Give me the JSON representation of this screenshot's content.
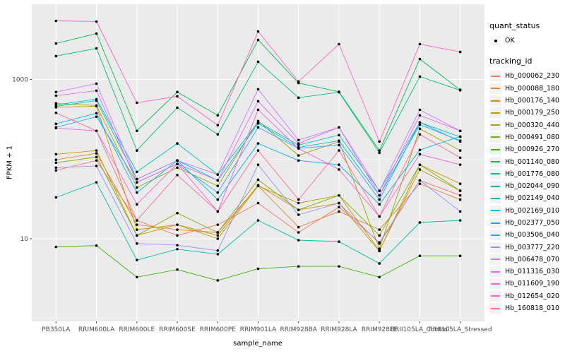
{
  "style_colors": {
    "panel_background": "#EBEBEB",
    "grid_line": "#FFFFFF",
    "tick_label": "#4D4D4D",
    "tick_mark": "#333333",
    "legend_key_background": "#F2F2F2",
    "point": "#000000"
  },
  "chart_data": {
    "type": "line",
    "title": "",
    "xlabel": "sample_name",
    "ylabel": "FPKM + 1",
    "yscale": "log10",
    "ylim": [
      0.92,
      8800
    ],
    "grid": "on",
    "legend_position": "right",
    "point_shape": "filled-circle",
    "x": [
      "PB350LA",
      "RRIM600LA",
      "RRIM600LE",
      "RRIM600SE",
      "RRIM600PE",
      "RRIM901LA",
      "RRIM928BA",
      "RRIM928LA",
      "RRIM928LE",
      "RRII105LA_Control",
      "RRII105LA_Stressed"
    ],
    "y_major_ticks": [
      {
        "label": "10",
        "value": 10
      },
      {
        "label": "1000",
        "value": 1000
      }
    ],
    "y_minor_tick_values": [
      1,
      100
    ],
    "legend": {
      "quant_status_title": "quant_status",
      "quant_status_items": [
        {
          "label": "OK"
        }
      ],
      "tracking_id_title": "tracking_id"
    },
    "series": [
      {
        "name": "Hb_000062_230",
        "color": "#F8766D",
        "values": [
          72,
          96,
          17,
          11,
          15,
          28,
          12,
          25,
          9,
          54,
          35
        ]
      },
      {
        "name": "Hb_000088_180",
        "color": "#EA8331",
        "values": [
          98,
          118,
          15,
          13,
          12,
          46,
          14,
          22,
          13,
          49,
          31
        ]
      },
      {
        "name": "Hb_000176_140",
        "color": "#D89000",
        "values": [
          447,
          461,
          13,
          15,
          11,
          47,
          23,
          28,
          7,
          85,
          49
        ]
      },
      {
        "name": "Hb_000179_250",
        "color": "#C09B00",
        "values": [
          115,
          128,
          11,
          15,
          10,
          46,
          28,
          35,
          7.1,
          74,
          40
        ]
      },
      {
        "name": "Hb_000320_440",
        "color": "#A3A500",
        "values": [
          500,
          470,
          44,
          78,
          46,
          300,
          111,
          166,
          7.5,
          240,
          128
        ]
      },
      {
        "name": "Hb_000491_080",
        "color": "#7CAE00",
        "values": [
          90,
          106,
          11,
          21,
          12,
          55,
          23,
          35,
          11,
          85,
          40
        ]
      },
      {
        "name": "Hb_000926_270",
        "color": "#39B600",
        "values": [
          7.9,
          8.2,
          3.3,
          4.1,
          3.0,
          4.2,
          4.5,
          4.5,
          3.3,
          6.1,
          6.1
        ]
      },
      {
        "name": "Hb_001140_080",
        "color": "#00BB4E",
        "values": [
          2825,
          3760,
          226,
          694,
          354,
          3130,
          900,
          700,
          128,
          1800,
          740
        ]
      },
      {
        "name": "Hb_001776_080",
        "color": "#00BF7D",
        "values": [
          1960,
          2450,
          128,
          442,
          204,
          1666,
          589,
          690,
          120,
          1085,
          730
        ]
      },
      {
        "name": "Hb_002044_090",
        "color": "#00C1A3",
        "values": [
          33,
          51,
          5.4,
          7.4,
          6.4,
          17,
          9.6,
          9.2,
          4.9,
          16,
          17
        ]
      },
      {
        "name": "Hb_002149_040",
        "color": "#00BFC4",
        "values": [
          480,
          565,
          69,
          157,
          64,
          290,
          150,
          200,
          40,
          288,
          190
        ]
      },
      {
        "name": "Hb_002169_010",
        "color": "#00BAE0",
        "values": [
          460,
          540,
          56,
          96,
          54,
          280,
          140,
          170,
          35,
          270,
          170
        ]
      },
      {
        "name": "Hb_002377_050",
        "color": "#00B0F6",
        "values": [
          277,
          376,
          38,
          96,
          31,
          157,
          96,
          85,
          27,
          130,
          192
        ]
      },
      {
        "name": "Hb_003506_040",
        "color": "#35A2FF",
        "values": [
          250,
          340,
          51,
          87,
          38,
          250,
          136,
          150,
          31,
          288,
          166
        ]
      },
      {
        "name": "Hb_003777_220",
        "color": "#9590FF",
        "values": [
          78,
          82,
          8.7,
          8.3,
          7.1,
          85,
          20,
          28,
          8.7,
          54,
          22
        ]
      },
      {
        "name": "Hb_006478_070",
        "color": "#C77CFF",
        "values": [
          694,
          885,
          56,
          96,
          64,
          752,
          173,
          250,
          40,
          416,
          226
        ]
      },
      {
        "name": "Hb_011316_030",
        "color": "#E76BF3",
        "values": [
          625,
          721,
          51,
          87,
          54,
          532,
          157,
          250,
          35,
          354,
          226
        ]
      },
      {
        "name": "Hb_011609_190",
        "color": "#FA62DB",
        "values": [
          245,
          226,
          27,
          87,
          22,
          416,
          136,
          74,
          19,
          115,
          85
        ]
      },
      {
        "name": "Hb_012654_020",
        "color": "#FF62BC",
        "values": [
          5430,
          5320,
          510,
          613,
          266,
          4000,
          941,
          2770,
          166,
          2770,
          2215
        ]
      },
      {
        "name": "Hb_160818_010",
        "color": "#FF6A98",
        "values": [
          380,
          226,
          17,
          63,
          22,
          128,
          31,
          128,
          19,
          204,
          104
        ]
      }
    ]
  }
}
